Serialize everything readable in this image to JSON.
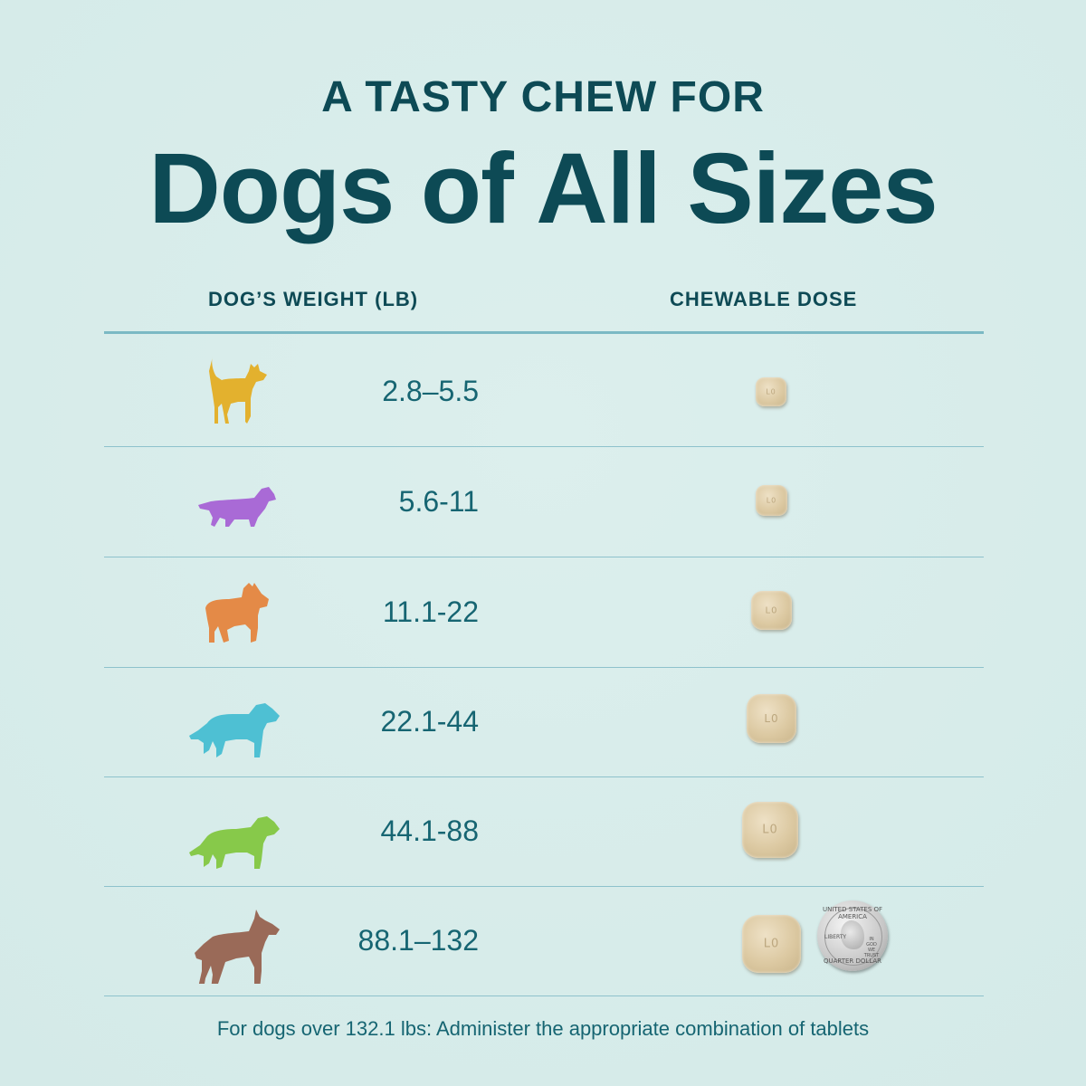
{
  "header": {
    "kicker": "A TASTY CHEW FOR",
    "title": "Dogs of All Sizes"
  },
  "table": {
    "col_weight": "DOG’S WEIGHT (LB)",
    "col_dose": "CHEWABLE DOSE",
    "rows": [
      {
        "range": "2.8–5.5",
        "dog_icon": "small-dog-icon",
        "dog_color": "#e3b12e",
        "tablet_mark": "L0"
      },
      {
        "range": "5.6-11",
        "dog_icon": "dachshund-dog-icon",
        "dog_color": "#a96ad6",
        "tablet_mark": "L0"
      },
      {
        "range": "11.1-22",
        "dog_icon": "terrier-dog-icon",
        "dog_color": "#e48a47",
        "tablet_mark": "L0"
      },
      {
        "range": "22.1-44",
        "dog_icon": "medium-dog-icon",
        "dog_color": "#4ec0d3",
        "tablet_mark": "L0"
      },
      {
        "range": "44.1-88",
        "dog_icon": "large-dog-icon",
        "dog_color": "#87c94a",
        "tablet_mark": "L0"
      },
      {
        "range": "88.1–132",
        "dog_icon": "great-dane-dog-icon",
        "dog_color": "#9a6a58",
        "tablet_mark": "L0"
      }
    ]
  },
  "coin": {
    "top_text": "UNITED STATES OF AMERICA",
    "bottom_text": "QUARTER DOLLAR",
    "liberty": "LIBERTY",
    "motto": "IN GOD WE TRUST"
  },
  "footnote": "For dogs over 132.1 lbs: Administer the appropriate combination of tablets"
}
